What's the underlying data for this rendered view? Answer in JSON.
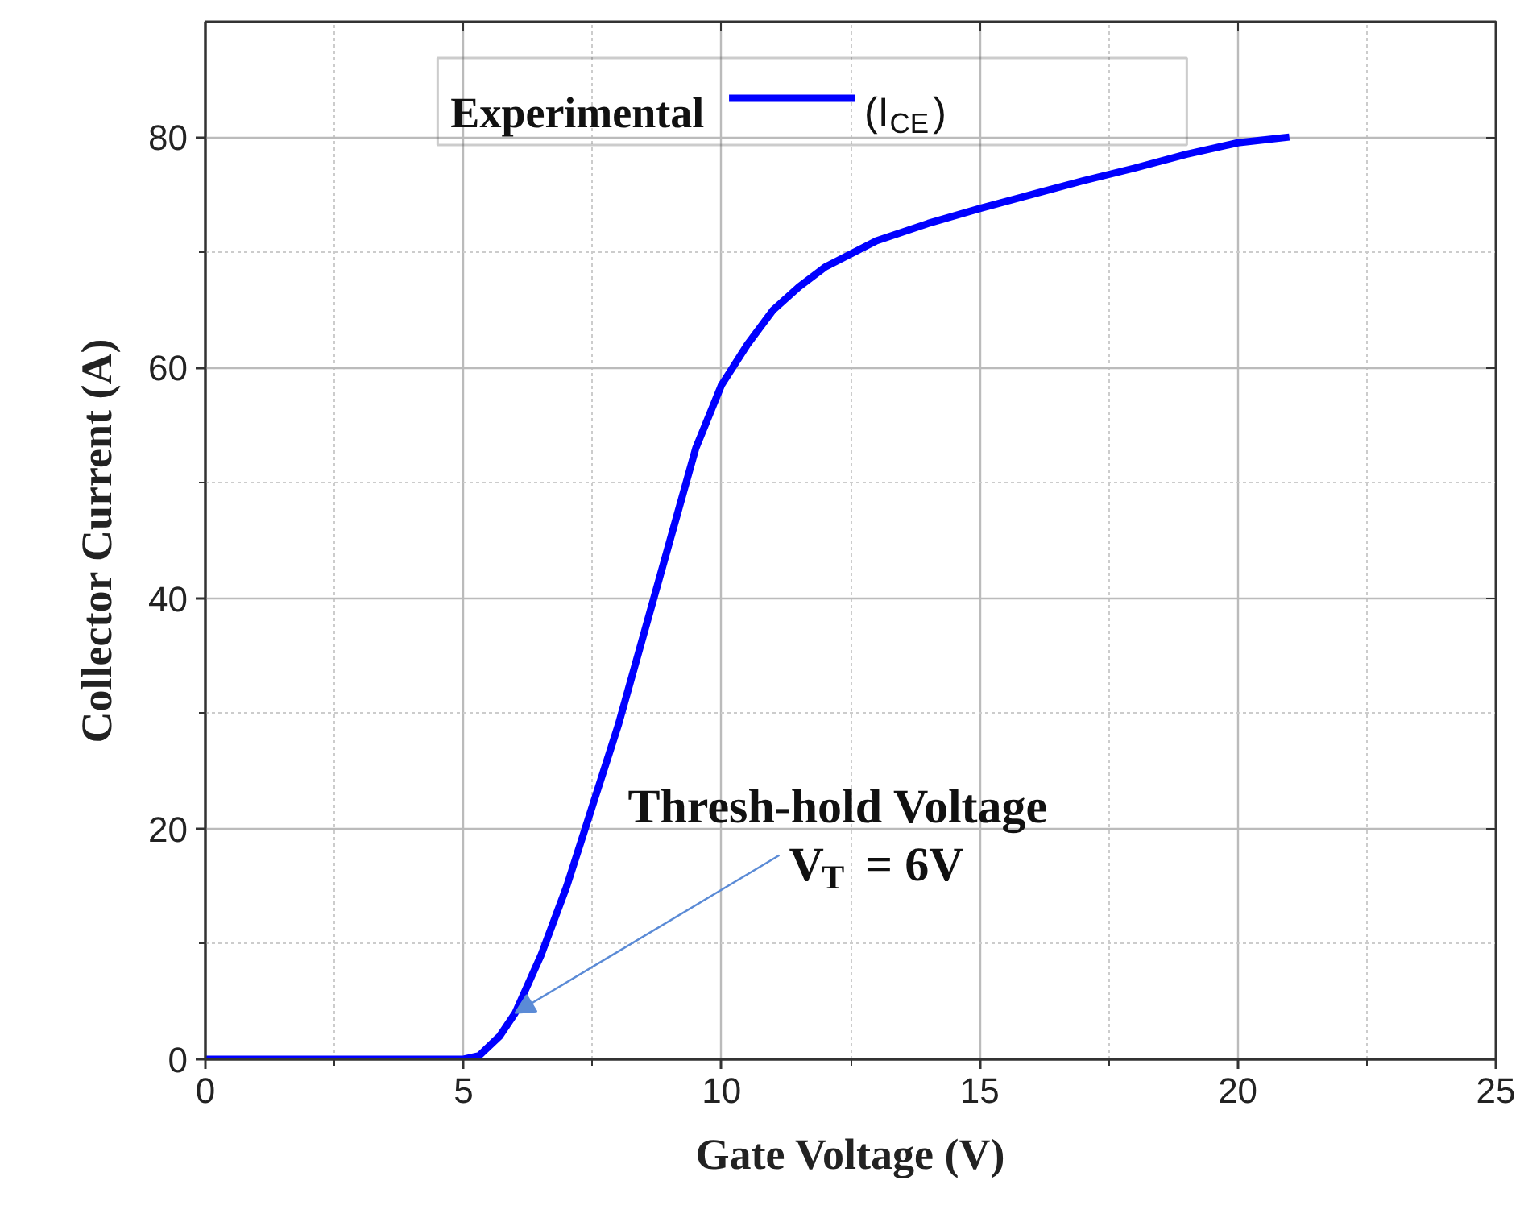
{
  "chart_data": {
    "type": "line",
    "xlabel": "Gate Voltage (V)",
    "ylabel": "Collector Current (A)",
    "legend_title": "Experimental",
    "x": [
      0,
      1,
      2,
      3,
      4,
      5,
      5.3,
      5.7,
      6,
      6.5,
      7,
      7.5,
      8,
      8.5,
      9,
      9.5,
      10,
      10.5,
      11,
      11.5,
      12,
      13,
      14,
      15,
      16,
      17,
      18,
      19,
      20,
      21
    ],
    "series": [
      {
        "name": "(I$_{CE}$)",
        "color": "#0000ff",
        "values": [
          0,
          0,
          0,
          0,
          0,
          0,
          0.3,
          2,
          4,
          9,
          15,
          22,
          29,
          37,
          45,
          53,
          58.5,
          62,
          65,
          67,
          68.7,
          71,
          72.5,
          73.8,
          75,
          76.2,
          77.3,
          78.5,
          79.5,
          80
        ]
      }
    ],
    "xlim": [
      0,
      25
    ],
    "ylim": [
      0,
      90
    ],
    "xticks": [
      0,
      5,
      10,
      15,
      20,
      25
    ],
    "yticks": [
      0,
      20,
      40,
      60,
      80
    ],
    "annotations": [
      {
        "text": "Thresh-hold Voltage",
        "x": 6,
        "y": 4
      },
      "V$_{T}$ = 6V"
    ],
    "grid": true,
    "legend": "top left",
    "marker": "none",
    "line_style": "solid"
  }
}
